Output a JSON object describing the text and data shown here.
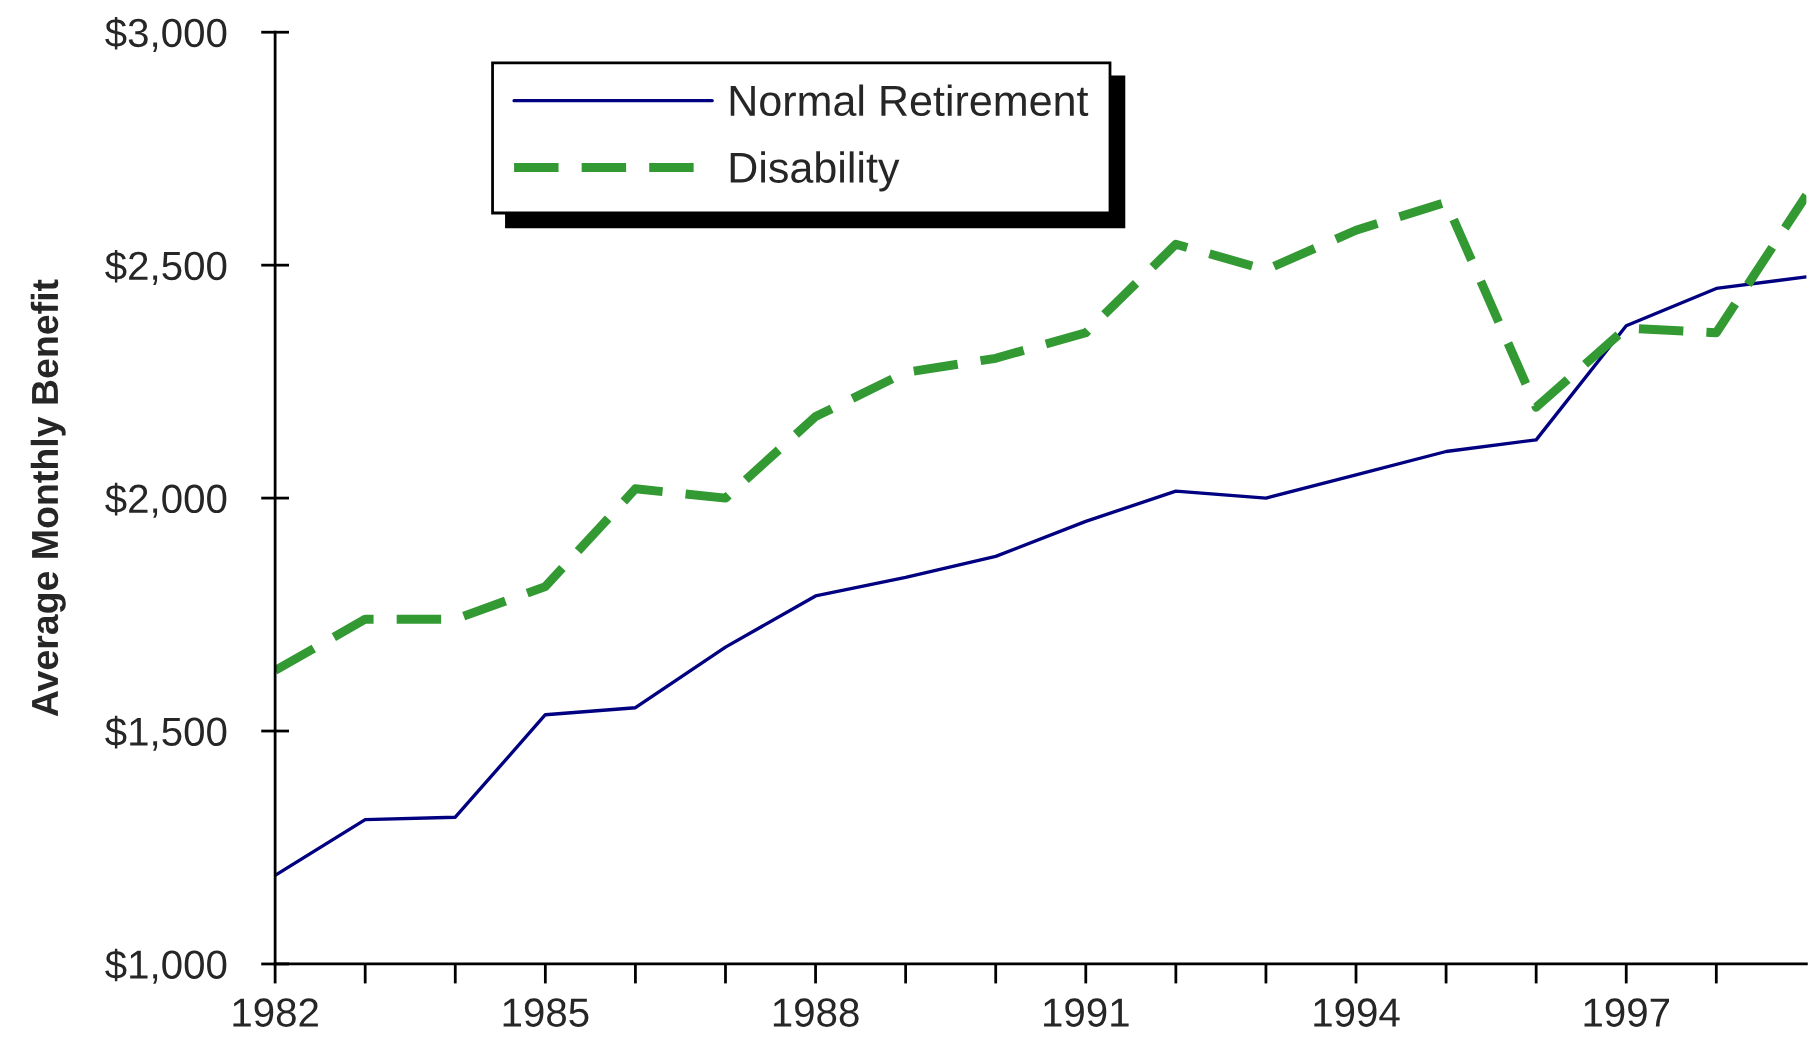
{
  "chart_data": {
    "type": "line",
    "ylabel": "Average Monthly Benefit",
    "x": [
      1982,
      1983,
      1984,
      1985,
      1986,
      1987,
      1988,
      1989,
      1990,
      1991,
      1992,
      1993,
      1994,
      1995,
      1996,
      1997,
      1998,
      1999
    ],
    "xlim": [
      1982,
      1999
    ],
    "xticks": [
      1982,
      {
        "value": 1983,
        "label": null
      },
      {
        "value": 1984,
        "label": null
      },
      1985,
      {
        "value": 1986,
        "label": null
      },
      {
        "value": 1987,
        "label": null
      },
      1988,
      {
        "value": 1989,
        "label": null
      },
      {
        "value": 1990,
        "label": null
      },
      1991,
      {
        "value": 1992,
        "label": null
      },
      {
        "value": 1993,
        "label": null
      },
      1994,
      {
        "value": 1995,
        "label": null
      },
      {
        "value": 1996,
        "label": null
      },
      1997,
      {
        "value": 1998,
        "label": null
      }
    ],
    "ylim": [
      1000,
      3000
    ],
    "yticks": [
      {
        "value": 1000,
        "label": "$1,000"
      },
      {
        "value": 1500,
        "label": "$1,500"
      },
      {
        "value": 2000,
        "label": "$2,000"
      },
      {
        "value": 2500,
        "label": "$2,500"
      },
      {
        "value": 3000,
        "label": "$3,000"
      }
    ],
    "grid": false,
    "legend": "top left",
    "series": [
      {
        "name": "Normal Retirement",
        "color": "#000080",
        "line_style": "solid",
        "values": [
          1190,
          1310,
          1315,
          1535,
          1550,
          1680,
          1790,
          1830,
          1875,
          1950,
          2015,
          2000,
          2050,
          2100,
          2125,
          2370,
          2450,
          2475
        ]
      },
      {
        "name": "Disability",
        "color": "#339933",
        "line_style": "dashed",
        "values": [
          1630,
          1740,
          1740,
          1810,
          2020,
          2000,
          2175,
          2270,
          2300,
          2355,
          2545,
          2490,
          2575,
          2635,
          2195,
          2365,
          2355,
          2650
        ]
      }
    ]
  }
}
